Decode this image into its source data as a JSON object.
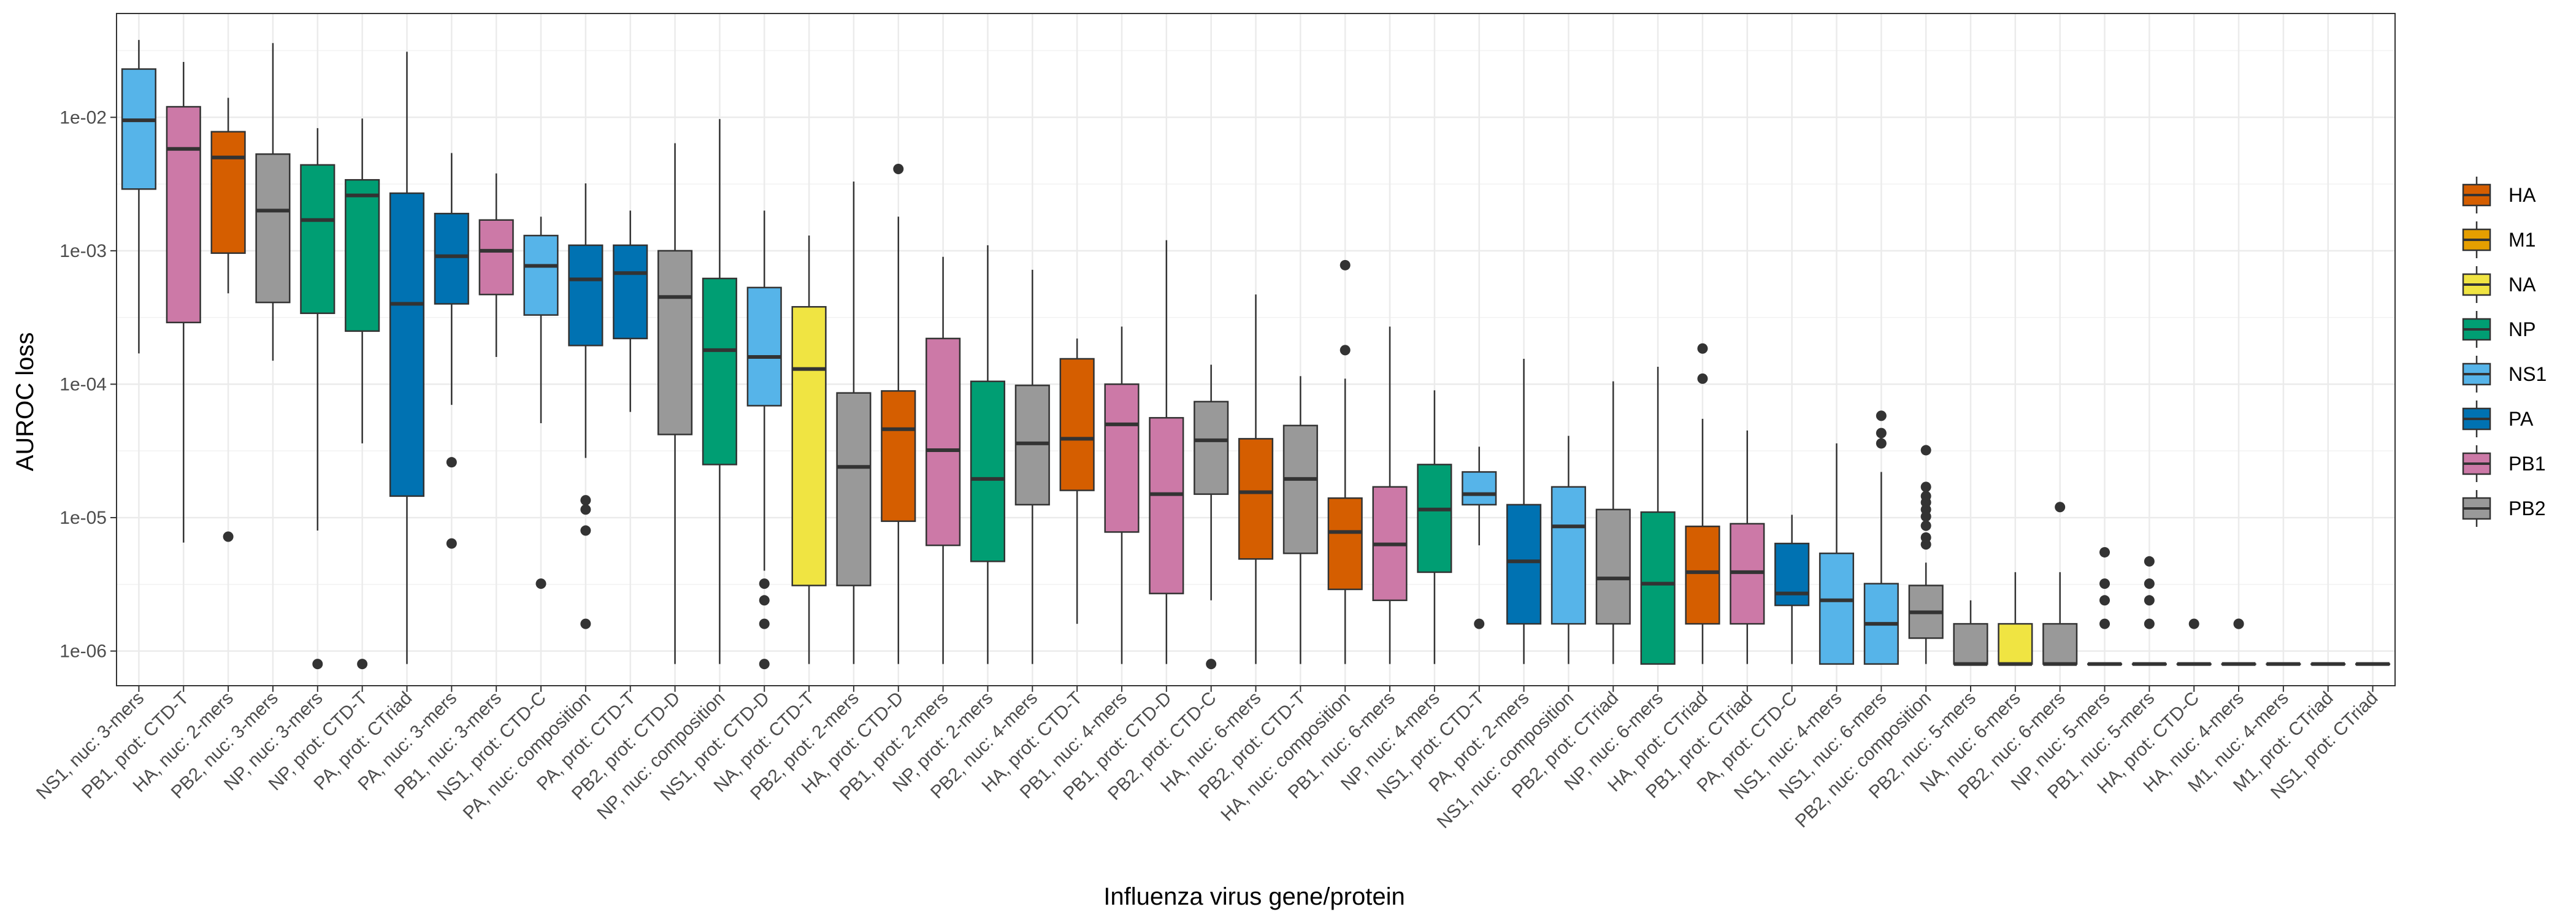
{
  "chart_data": {
    "type": "boxplot",
    "xlabel": "Influenza virus gene/protein",
    "ylabel": "AUROC loss",
    "yscale": "log10",
    "ylim": [
      5.5e-07,
      0.06
    ],
    "yticks": [
      1e-06,
      1e-05,
      0.0001,
      0.001,
      0.01
    ],
    "ytick_labels": [
      "1e-06",
      "1e-05",
      "1e-04",
      "1e-03",
      "1e-02"
    ],
    "grid": true,
    "legend": {
      "placement": "right",
      "entries": [
        {
          "name": "HA",
          "color": "#D55E00"
        },
        {
          "name": "M1",
          "color": "#E69F00"
        },
        {
          "name": "NA",
          "color": "#F0E442"
        },
        {
          "name": "NP",
          "color": "#009E73"
        },
        {
          "name": "NS1",
          "color": "#56B4E9"
        },
        {
          "name": "PA",
          "color": "#0072B2"
        },
        {
          "name": "PB1",
          "color": "#CC79A7"
        },
        {
          "name": "PB2",
          "color": "#999999"
        }
      ]
    },
    "boxes": [
      {
        "label": "NS1, nuc: 3-mers",
        "group": "NS1",
        "whislo": 0.00017,
        "q1": 0.0029,
        "med": 0.0095,
        "q3": 0.023,
        "whishi": 0.038,
        "outliers": []
      },
      {
        "label": "PB1, prot: CTD-T",
        "group": "PB1",
        "whislo": 6.5e-06,
        "q1": 0.00029,
        "med": 0.0058,
        "q3": 0.012,
        "whishi": 0.026,
        "outliers": []
      },
      {
        "label": "HA, nuc: 2-mers",
        "group": "HA",
        "whislo": 0.00048,
        "q1": 0.00096,
        "med": 0.005,
        "q3": 0.0078,
        "whishi": 0.014,
        "outliers": [
          7.2e-06
        ]
      },
      {
        "label": "PB2, nuc: 3-mers",
        "group": "PB2",
        "whislo": 0.00015,
        "q1": 0.00041,
        "med": 0.002,
        "q3": 0.0053,
        "whishi": 0.036,
        "outliers": []
      },
      {
        "label": "NP, nuc: 3-mers",
        "group": "NP",
        "whislo": 8e-06,
        "q1": 0.00034,
        "med": 0.0017,
        "q3": 0.0044,
        "whishi": 0.0083,
        "outliers": [
          8e-07
        ]
      },
      {
        "label": "NP, prot: CTD-T",
        "group": "NP",
        "whislo": 3.6e-05,
        "q1": 0.00025,
        "med": 0.0026,
        "q3": 0.0034,
        "whishi": 0.0098,
        "outliers": [
          8e-07
        ]
      },
      {
        "label": "PA, prot: CTriad",
        "group": "PA",
        "whislo": 8e-07,
        "q1": 1.45e-05,
        "med": 0.0004,
        "q3": 0.0027,
        "whishi": 0.031,
        "outliers": []
      },
      {
        "label": "PA, nuc: 3-mers",
        "group": "PA",
        "whislo": 7e-05,
        "q1": 0.0004,
        "med": 0.00091,
        "q3": 0.0019,
        "whishi": 0.0054,
        "outliers": [
          2.6e-05,
          6.4e-06
        ]
      },
      {
        "label": "PB1, nuc: 3-mers",
        "group": "PB1",
        "whislo": 0.00016,
        "q1": 0.00047,
        "med": 0.001,
        "q3": 0.0017,
        "whishi": 0.0038,
        "outliers": []
      },
      {
        "label": "NS1, prot: CTD-C",
        "group": "NS1",
        "whislo": 5.1e-05,
        "q1": 0.00033,
        "med": 0.00077,
        "q3": 0.0013,
        "whishi": 0.0018,
        "outliers": [
          3.2e-06
        ]
      },
      {
        "label": "PA, nuc: composition",
        "group": "PA",
        "whislo": 2.8e-05,
        "q1": 0.000195,
        "med": 0.00061,
        "q3": 0.0011,
        "whishi": 0.0032,
        "outliers": [
          1.35e-05,
          1.15e-05,
          8e-06,
          1.6e-06
        ]
      },
      {
        "label": "PA, prot: CTD-T",
        "group": "PA",
        "whislo": 6.2e-05,
        "q1": 0.00022,
        "med": 0.00068,
        "q3": 0.0011,
        "whishi": 0.002,
        "outliers": []
      },
      {
        "label": "PB2, prot: CTD-D",
        "group": "PB2",
        "whislo": 8e-07,
        "q1": 4.2e-05,
        "med": 0.00045,
        "q3": 0.001,
        "whishi": 0.0064,
        "outliers": []
      },
      {
        "label": "NP, nuc: composition",
        "group": "NP",
        "whislo": 8e-07,
        "q1": 2.5e-05,
        "med": 0.00018,
        "q3": 0.00062,
        "whishi": 0.0097,
        "outliers": []
      },
      {
        "label": "NS1, prot: CTD-D",
        "group": "NS1",
        "whislo": 4e-06,
        "q1": 6.9e-05,
        "med": 0.00016,
        "q3": 0.00053,
        "whishi": 0.002,
        "outliers": [
          3.2e-06,
          2.4e-06,
          1.6e-06,
          8e-07
        ]
      },
      {
        "label": "NA, prot: CTD-T",
        "group": "NA",
        "whislo": 8e-07,
        "q1": 3.1e-06,
        "med": 0.00013,
        "q3": 0.00038,
        "whishi": 0.0013,
        "outliers": []
      },
      {
        "label": "PB2, prot: 2-mers",
        "group": "PB2",
        "whislo": 8e-07,
        "q1": 3.1e-06,
        "med": 2.4e-05,
        "q3": 8.6e-05,
        "whishi": 0.0033,
        "outliers": []
      },
      {
        "label": "HA, prot: CTD-D",
        "group": "HA",
        "whislo": 8e-07,
        "q1": 9.4e-06,
        "med": 4.6e-05,
        "q3": 8.9e-05,
        "whishi": 0.0018,
        "outliers": [
          0.0041
        ]
      },
      {
        "label": "PB1, prot: 2-mers",
        "group": "PB1",
        "whislo": 8e-07,
        "q1": 6.2e-06,
        "med": 3.2e-05,
        "q3": 0.00022,
        "whishi": 0.0009,
        "outliers": []
      },
      {
        "label": "NP, prot: 2-mers",
        "group": "NP",
        "whislo": 8e-07,
        "q1": 4.7e-06,
        "med": 1.95e-05,
        "q3": 0.000105,
        "whishi": 0.0011,
        "outliers": []
      },
      {
        "label": "PB2, nuc: 4-mers",
        "group": "PB2",
        "whislo": 8e-07,
        "q1": 1.25e-05,
        "med": 3.6e-05,
        "q3": 9.8e-05,
        "whishi": 0.00072,
        "outliers": []
      },
      {
        "label": "HA, prot: CTD-T",
        "group": "HA",
        "whislo": 1.6e-06,
        "q1": 1.6e-05,
        "med": 3.9e-05,
        "q3": 0.000155,
        "whishi": 0.00022,
        "outliers": []
      },
      {
        "label": "PB1, nuc: 4-mers",
        "group": "PB1",
        "whislo": 8e-07,
        "q1": 7.8e-06,
        "med": 5e-05,
        "q3": 0.0001,
        "whishi": 0.00027,
        "outliers": []
      },
      {
        "label": "PB1, prot: CTD-D",
        "group": "PB1",
        "whislo": 8e-07,
        "q1": 2.7e-06,
        "med": 1.5e-05,
        "q3": 5.6e-05,
        "whishi": 0.0012,
        "outliers": []
      },
      {
        "label": "PB2, prot: CTD-C",
        "group": "PB2",
        "whislo": 2.4e-06,
        "q1": 1.5e-05,
        "med": 3.8e-05,
        "q3": 7.4e-05,
        "whishi": 0.00014,
        "outliers": [
          8e-07
        ]
      },
      {
        "label": "HA, nuc: 6-mers",
        "group": "HA",
        "whislo": 8e-07,
        "q1": 4.9e-06,
        "med": 1.55e-05,
        "q3": 3.9e-05,
        "whishi": 0.00047,
        "outliers": []
      },
      {
        "label": "PB2, prot: CTD-T",
        "group": "PB2",
        "whislo": 8e-07,
        "q1": 5.4e-06,
        "med": 1.95e-05,
        "q3": 4.9e-05,
        "whishi": 0.000115,
        "outliers": []
      },
      {
        "label": "HA, nuc: composition",
        "group": "HA",
        "whislo": 8e-07,
        "q1": 2.9e-06,
        "med": 7.8e-06,
        "q3": 1.4e-05,
        "whishi": 0.00011,
        "outliers": [
          0.00018,
          0.00078
        ]
      },
      {
        "label": "PB1, nuc: 6-mers",
        "group": "PB1",
        "whislo": 8e-07,
        "q1": 2.4e-06,
        "med": 6.3e-06,
        "q3": 1.7e-05,
        "whishi": 0.00027,
        "outliers": []
      },
      {
        "label": "NP, nuc: 4-mers",
        "group": "NP",
        "whislo": 8e-07,
        "q1": 3.9e-06,
        "med": 1.15e-05,
        "q3": 2.5e-05,
        "whishi": 9e-05,
        "outliers": []
      },
      {
        "label": "NS1, prot: CTD-T",
        "group": "NS1",
        "whislo": 6.2e-06,
        "q1": 1.25e-05,
        "med": 1.5e-05,
        "q3": 2.2e-05,
        "whishi": 3.4e-05,
        "outliers": [
          1.6e-06
        ]
      },
      {
        "label": "PA, prot: 2-mers",
        "group": "PA",
        "whislo": 8e-07,
        "q1": 1.6e-06,
        "med": 4.7e-06,
        "q3": 1.25e-05,
        "whishi": 0.000155,
        "outliers": []
      },
      {
        "label": "NS1, nuc: composition",
        "group": "NS1",
        "whislo": 8e-07,
        "q1": 1.6e-06,
        "med": 8.6e-06,
        "q3": 1.7e-05,
        "whishi": 4.1e-05,
        "outliers": []
      },
      {
        "label": "PB2, prot: CTriad",
        "group": "PB2",
        "whislo": 8e-07,
        "q1": 1.6e-06,
        "med": 3.5e-06,
        "q3": 1.15e-05,
        "whishi": 0.000105,
        "outliers": []
      },
      {
        "label": "NP, nuc: 6-mers",
        "group": "NP",
        "whislo": 8e-07,
        "q1": 8e-07,
        "med": 3.2e-06,
        "q3": 1.1e-05,
        "whishi": 0.000135,
        "outliers": []
      },
      {
        "label": "HA, prot: CTriad",
        "group": "HA",
        "whislo": 8e-07,
        "q1": 1.6e-06,
        "med": 3.9e-06,
        "q3": 8.6e-06,
        "whishi": 5.5e-05,
        "outliers": [
          0.00011,
          0.000185
        ]
      },
      {
        "label": "PB1, prot: CTriad",
        "group": "PB1",
        "whislo": 8e-07,
        "q1": 1.6e-06,
        "med": 3.9e-06,
        "q3": 9e-06,
        "whishi": 4.5e-05,
        "outliers": []
      },
      {
        "label": "PA, prot: CTD-C",
        "group": "PA",
        "whislo": 8e-07,
        "q1": 2.2e-06,
        "med": 2.7e-06,
        "q3": 6.4e-06,
        "whishi": 1.05e-05,
        "outliers": []
      },
      {
        "label": "NS1, nuc: 4-mers",
        "group": "NS1",
        "whislo": 8e-07,
        "q1": 8e-07,
        "med": 2.4e-06,
        "q3": 5.4e-06,
        "whishi": 3.6e-05,
        "outliers": []
      },
      {
        "label": "NS1, nuc: 6-mers",
        "group": "NS1",
        "whislo": 8e-07,
        "q1": 8e-07,
        "med": 1.6e-06,
        "q3": 3.2e-06,
        "whishi": 2.2e-05,
        "outliers": [
          3.6e-05,
          4.3e-05,
          5.8e-05
        ]
      },
      {
        "label": "PB2, nuc: composition",
        "group": "PB2",
        "whislo": 8e-07,
        "q1": 1.25e-06,
        "med": 1.95e-06,
        "q3": 3.1e-06,
        "whishi": 4.6e-06,
        "outliers": [
          6.3e-06,
          7.1e-06,
          8.7e-06,
          1.02e-05,
          1.15e-05,
          1.3e-05,
          1.45e-05,
          1.7e-05,
          3.2e-05
        ]
      },
      {
        "label": "PB2, nuc: 5-mers",
        "group": "PB2",
        "whislo": 8e-07,
        "q1": 8e-07,
        "med": 8e-07,
        "q3": 1.6e-06,
        "whishi": 2.4e-06,
        "outliers": []
      },
      {
        "label": "NA, nuc: 6-mers",
        "group": "NA",
        "whislo": 8e-07,
        "q1": 8e-07,
        "med": 8e-07,
        "q3": 1.6e-06,
        "whishi": 3.9e-06,
        "outliers": []
      },
      {
        "label": "PB2, nuc: 6-mers",
        "group": "PB2",
        "whislo": 8e-07,
        "q1": 8e-07,
        "med": 8e-07,
        "q3": 1.6e-06,
        "whishi": 3.9e-06,
        "outliers": [
          1.2e-05
        ]
      },
      {
        "label": "NP, nuc: 5-mers",
        "group": "NP",
        "whislo": 8e-07,
        "q1": 8e-07,
        "med": 8e-07,
        "q3": 8e-07,
        "whishi": 8e-07,
        "outliers": [
          1.6e-06,
          2.4e-06,
          3.2e-06,
          5.5e-06
        ]
      },
      {
        "label": "PB1, nuc: 5-mers",
        "group": "PB1",
        "whislo": 8e-07,
        "q1": 8e-07,
        "med": 8e-07,
        "q3": 8e-07,
        "whishi": 8e-07,
        "outliers": [
          1.6e-06,
          2.4e-06,
          3.2e-06,
          4.7e-06
        ]
      },
      {
        "label": "HA, prot: CTD-C",
        "group": "HA",
        "whislo": 8e-07,
        "q1": 8e-07,
        "med": 8e-07,
        "q3": 8e-07,
        "whishi": 8e-07,
        "outliers": [
          1.6e-06
        ]
      },
      {
        "label": "HA, nuc: 4-mers",
        "group": "HA",
        "whislo": 8e-07,
        "q1": 8e-07,
        "med": 8e-07,
        "q3": 8e-07,
        "whishi": 8e-07,
        "outliers": [
          1.6e-06,
          1.6e-06
        ]
      },
      {
        "label": "M1, nuc: 4-mers",
        "group": "M1",
        "whislo": 8e-07,
        "q1": 8e-07,
        "med": 8e-07,
        "q3": 8e-07,
        "whishi": 8e-07,
        "outliers": []
      },
      {
        "label": "M1, prot: CTriad",
        "group": "M1",
        "whislo": 8e-07,
        "q1": 8e-07,
        "med": 8e-07,
        "q3": 8e-07,
        "whishi": 8e-07,
        "outliers": []
      },
      {
        "label": "NS1, prot: CTriad",
        "group": "NS1",
        "whislo": 8e-07,
        "q1": 8e-07,
        "med": 8e-07,
        "q3": 8e-07,
        "whishi": 8e-07,
        "outliers": []
      }
    ]
  }
}
